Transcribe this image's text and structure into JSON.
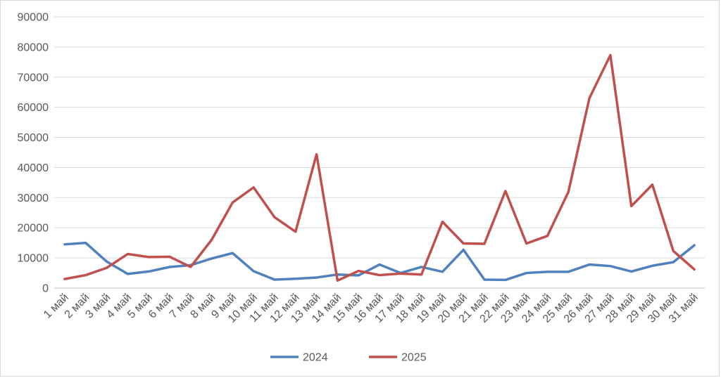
{
  "chart_data": {
    "type": "line",
    "title": "",
    "xlabel": "",
    "ylabel": "",
    "categories": [
      "1 май",
      "2 май",
      "3 май",
      "4 май",
      "5 май",
      "6 май",
      "7 май",
      "8 май",
      "9 май",
      "10 май",
      "11 май",
      "12 май",
      "13 май",
      "14 май",
      "15 май",
      "16 май",
      "17 май",
      "18 май",
      "19 май",
      "20 май",
      "21 май",
      "22 май",
      "23 май",
      "24 май",
      "25 май",
      "26 май",
      "27 май",
      "28 май",
      "29 май",
      "30 май",
      "31 май"
    ],
    "ylim": [
      0,
      90000
    ],
    "yticks": [
      "0",
      "10000",
      "20000",
      "30000",
      "40000",
      "50000",
      "60000",
      "70000",
      "80000",
      "90000"
    ],
    "grid": true,
    "legend_position": "bottom",
    "series": [
      {
        "name": "2024",
        "color": "#4f81bd",
        "values": [
          14500,
          15000,
          8800,
          4700,
          5500,
          7000,
          7600,
          9800,
          11600,
          5600,
          2800,
          3100,
          3500,
          4500,
          4200,
          7800,
          5000,
          7000,
          5400,
          12700,
          2800,
          2700,
          5000,
          5400,
          5400,
          7800,
          7300,
          5500,
          7400,
          8600,
          14200
        ]
      },
      {
        "name": "2025",
        "color": "#c0504d",
        "values": [
          3000,
          4300,
          6700,
          11300,
          10300,
          10400,
          7000,
          16000,
          28400,
          33400,
          23500,
          18700,
          44400,
          2500,
          5700,
          4300,
          4800,
          4500,
          22000,
          14800,
          14700,
          32200,
          14800,
          17300,
          31900,
          63000,
          77300,
          27200,
          34300,
          12300,
          6200
        ]
      }
    ]
  }
}
